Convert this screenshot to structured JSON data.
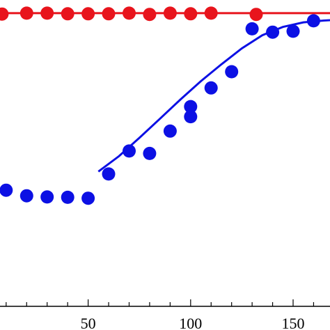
{
  "chart_data": {
    "type": "scatter",
    "title": "",
    "xlabel": "",
    "ylabel": "",
    "xlim": [
      7,
      168
    ],
    "ylim": [
      0,
      1
    ],
    "grid": false,
    "x_ticks": [
      50,
      100,
      150
    ],
    "x_tick_labels": [
      "50",
      "100",
      "150"
    ],
    "series": [
      {
        "color": "#e8141c",
        "points": [
          [
            8,
            0.954
          ],
          [
            20,
            0.957
          ],
          [
            30,
            0.957
          ],
          [
            40,
            0.955
          ],
          [
            50,
            0.955
          ],
          [
            60,
            0.955
          ],
          [
            70,
            0.957
          ],
          [
            80,
            0.953
          ],
          [
            90,
            0.957
          ],
          [
            100,
            0.955
          ],
          [
            110,
            0.957
          ],
          [
            132,
            0.953
          ]
        ],
        "fit": [
          [
            7,
            0.957
          ],
          [
            168,
            0.957
          ]
        ]
      },
      {
        "color": "#0c10e4",
        "points": [
          [
            10,
            0.379
          ],
          [
            20,
            0.361
          ],
          [
            30,
            0.357
          ],
          [
            40,
            0.356
          ],
          [
            50,
            0.353
          ],
          [
            60,
            0.432
          ],
          [
            70,
            0.507
          ],
          [
            80,
            0.499
          ],
          [
            90,
            0.572
          ],
          [
            100,
            0.619
          ],
          [
            100,
            0.652
          ],
          [
            110,
            0.713
          ],
          [
            120,
            0.766
          ],
          [
            130,
            0.906
          ],
          [
            140,
            0.895
          ],
          [
            150,
            0.898
          ],
          [
            160,
            0.932
          ]
        ],
        "fit": [
          [
            55,
            0.44
          ],
          [
            65,
            0.49
          ],
          [
            75,
            0.55
          ],
          [
            85,
            0.612
          ],
          [
            95,
            0.675
          ],
          [
            105,
            0.735
          ],
          [
            115,
            0.79
          ],
          [
            125,
            0.842
          ],
          [
            135,
            0.885
          ],
          [
            145,
            0.912
          ],
          [
            155,
            0.927
          ],
          [
            165,
            0.933
          ],
          [
            168,
            0.934
          ]
        ]
      }
    ]
  }
}
